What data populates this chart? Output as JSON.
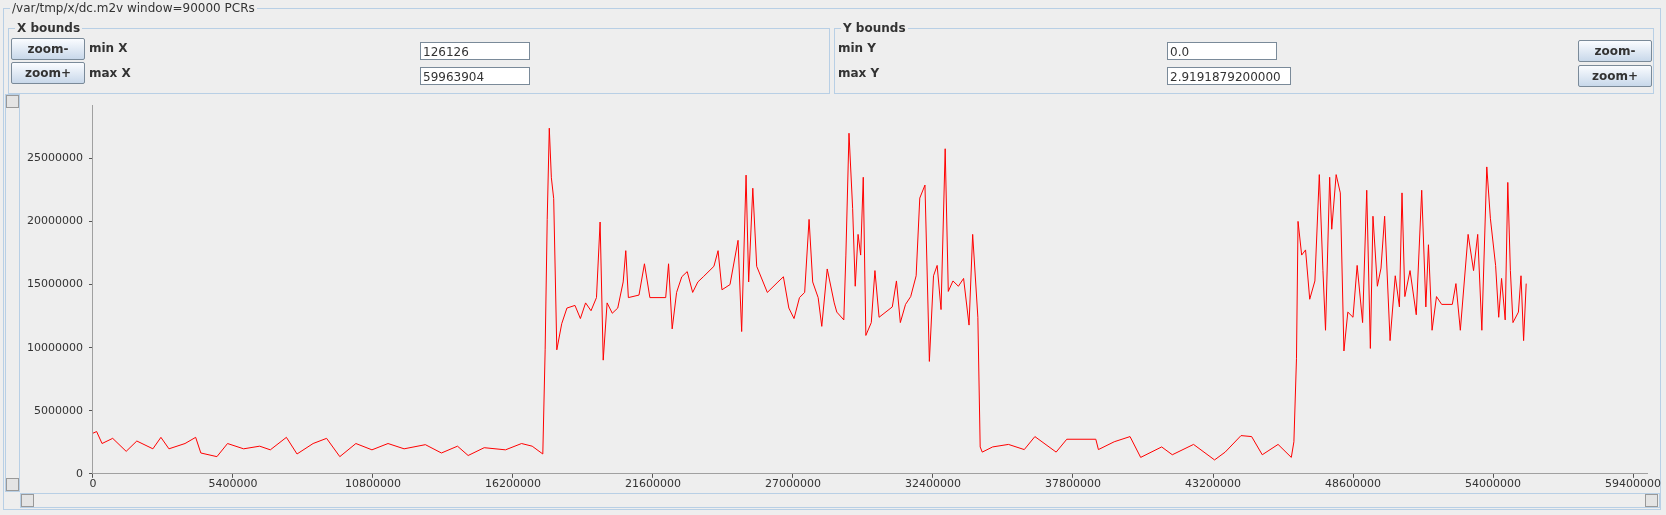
{
  "chart_data": {
    "type": "line",
    "title": "/var/tmp/x/dc.m2v window=90000 PCRs",
    "annotations": [
      "X bounds",
      "zoom-",
      "zoom+",
      "min X",
      "126126",
      "max X",
      "59963904",
      "Y bounds",
      "min Y",
      "0.0",
      "max Y",
      "2.9191879200000",
      "zoom-",
      "zoom+"
    ],
    "xlim": [
      0,
      59963904
    ],
    "xticks": [
      0,
      5400000,
      10800000,
      16200000,
      21600000,
      27000000,
      32400000,
      37800000,
      43200000,
      48600000,
      54000000,
      59400000
    ],
    "ylim": [
      0,
      29191879.2
    ],
    "yticks": [
      0,
      5000000,
      10000000,
      15000000,
      20000000,
      25000000
    ],
    "grid": false,
    "legend": false,
    "marker": "none",
    "line_style": "solid",
    "series": [
      {
        "color": "#ff0000",
        "x": [
          0,
          140000,
          350000,
          760000,
          1280000,
          1690000,
          2310000,
          2620000,
          2930000,
          3550000,
          3960000,
          4160000,
          4780000,
          5190000,
          5810000,
          6430000,
          6840000,
          7460000,
          7870000,
          8490000,
          9010000,
          9520000,
          10140000,
          10760000,
          11380000,
          12000000,
          12820000,
          13440000,
          14060000,
          14470000,
          15090000,
          15910000,
          16530000,
          16940000,
          17350000,
          17440000,
          17520000,
          17600000,
          17680000,
          17770000,
          17890000,
          18080000,
          18280000,
          18590000,
          18800000,
          19000000,
          19210000,
          19420000,
          19560000,
          19680000,
          19830000,
          20030000,
          20240000,
          20450000,
          20550000,
          20650000,
          21060000,
          21270000,
          21480000,
          22090000,
          22200000,
          22340000,
          22510000,
          22710000,
          22920000,
          23130000,
          23330000,
          23540000,
          23950000,
          24110000,
          24260000,
          24570000,
          24880000,
          25020000,
          25190000,
          25290000,
          25450000,
          25600000,
          26010000,
          26420000,
          26630000,
          26840000,
          27040000,
          27250000,
          27450000,
          27620000,
          27760000,
          27970000,
          28110000,
          28320000,
          28590000,
          28690000,
          28960000,
          29040000,
          29160000,
          29300000,
          29400000,
          29510000,
          29610000,
          29710000,
          29810000,
          30020000,
          30160000,
          30320000,
          30830000,
          30990000,
          31140000,
          31340000,
          31540000,
          31750000,
          31890000,
          32090000,
          32260000,
          32420000,
          32560000,
          32710000,
          32870000,
          32990000,
          33170000,
          33380000,
          33580000,
          33790000,
          33930000,
          34130000,
          34220000,
          34300000,
          34700000,
          35310000,
          35920000,
          36330000,
          37150000,
          37560000,
          38680000,
          38780000,
          39390000,
          40000000,
          40410000,
          41220000,
          41630000,
          42450000,
          43260000,
          43670000,
          44280000,
          44690000,
          45100000,
          45710000,
          46220000,
          46320000,
          46420000,
          46480000,
          46620000,
          46770000,
          46930000,
          47130000,
          47300000,
          47440000,
          47540000,
          47700000,
          47780000,
          47950000,
          48110000,
          48250000,
          48400000,
          48600000,
          48760000,
          48970000,
          49130000,
          49270000,
          49370000,
          49540000,
          49680000,
          49820000,
          50030000,
          50230000,
          50390000,
          50490000,
          50600000,
          50800000,
          51040000,
          51250000,
          51410000,
          51510000,
          51650000,
          51820000,
          52020000,
          52430000,
          52570000,
          52740000,
          53040000,
          53250000,
          53410000,
          53570000,
          53760000,
          53900000,
          54100000,
          54220000,
          54330000,
          54470000,
          54570000,
          54670000,
          54770000,
          54980000,
          55080000,
          55180000,
          55280000
        ],
        "values": [
          3220000,
          3350000,
          2400000,
          2810000,
          1780000,
          2600000,
          1980000,
          2890000,
          1980000,
          2400000,
          2890000,
          1650000,
          1360000,
          2400000,
          1980000,
          2190000,
          1900000,
          2890000,
          1570000,
          2400000,
          2810000,
          1360000,
          2400000,
          1900000,
          2400000,
          1980000,
          2310000,
          1650000,
          2190000,
          1450000,
          2070000,
          1900000,
          2400000,
          2190000,
          1570000,
          9830000,
          20170000,
          27400000,
          23470000,
          21820000,
          9830000,
          11900000,
          13140000,
          13350000,
          12310000,
          13550000,
          12930000,
          13970000,
          19960000,
          9010000,
          13550000,
          12730000,
          13140000,
          15210000,
          17690000,
          13970000,
          14170000,
          16650000,
          13970000,
          13970000,
          16650000,
          11490000,
          14380000,
          15620000,
          16030000,
          14380000,
          15210000,
          15620000,
          16450000,
          17690000,
          14590000,
          15000000,
          18510000,
          11280000,
          23680000,
          15210000,
          22640000,
          16450000,
          14380000,
          15210000,
          15620000,
          13140000,
          12310000,
          13970000,
          14380000,
          20170000,
          15210000,
          13970000,
          11690000,
          16240000,
          13550000,
          12820000,
          12200000,
          17340000,
          27000000,
          21040000,
          14870000,
          18980000,
          17340000,
          23510000,
          10970000,
          11990000,
          16110000,
          12410000,
          13230000,
          15290000,
          11990000,
          13430000,
          14050000,
          15700000,
          21860000,
          22890000,
          8910000,
          15700000,
          16520000,
          13020000,
          25770000,
          14460000,
          15290000,
          14870000,
          15490000,
          11790000,
          18980000,
          12410000,
          2130000,
          1720000,
          2130000,
          2330000,
          1920000,
          2950000,
          1720000,
          2740000,
          2740000,
          1920000,
          2540000,
          2950000,
          1300000,
          2130000,
          1510000,
          2330000,
          1100000,
          1720000,
          3030000,
          2950000,
          1510000,
          2330000,
          1300000,
          2540000,
          9120000,
          20010000,
          17340000,
          17750000,
          13840000,
          15290000,
          23720000,
          16110000,
          11380000,
          23510000,
          19390000,
          23720000,
          22270000,
          9740000,
          12820000,
          12410000,
          16520000,
          11990000,
          22480000,
          9940000,
          20420000,
          14870000,
          16310000,
          20420000,
          10560000,
          15700000,
          13230000,
          22270000,
          14050000,
          16110000,
          12610000,
          22480000,
          13230000,
          18160000,
          11380000,
          14050000,
          13430000,
          13430000,
          15080000,
          11380000,
          18980000,
          16110000,
          18980000,
          11380000,
          24330000,
          20220000,
          16520000,
          12410000,
          15490000,
          12200000,
          23100000,
          16110000,
          11990000,
          12820000,
          15700000,
          10560000,
          15080000
        ]
      }
    ]
  }
}
